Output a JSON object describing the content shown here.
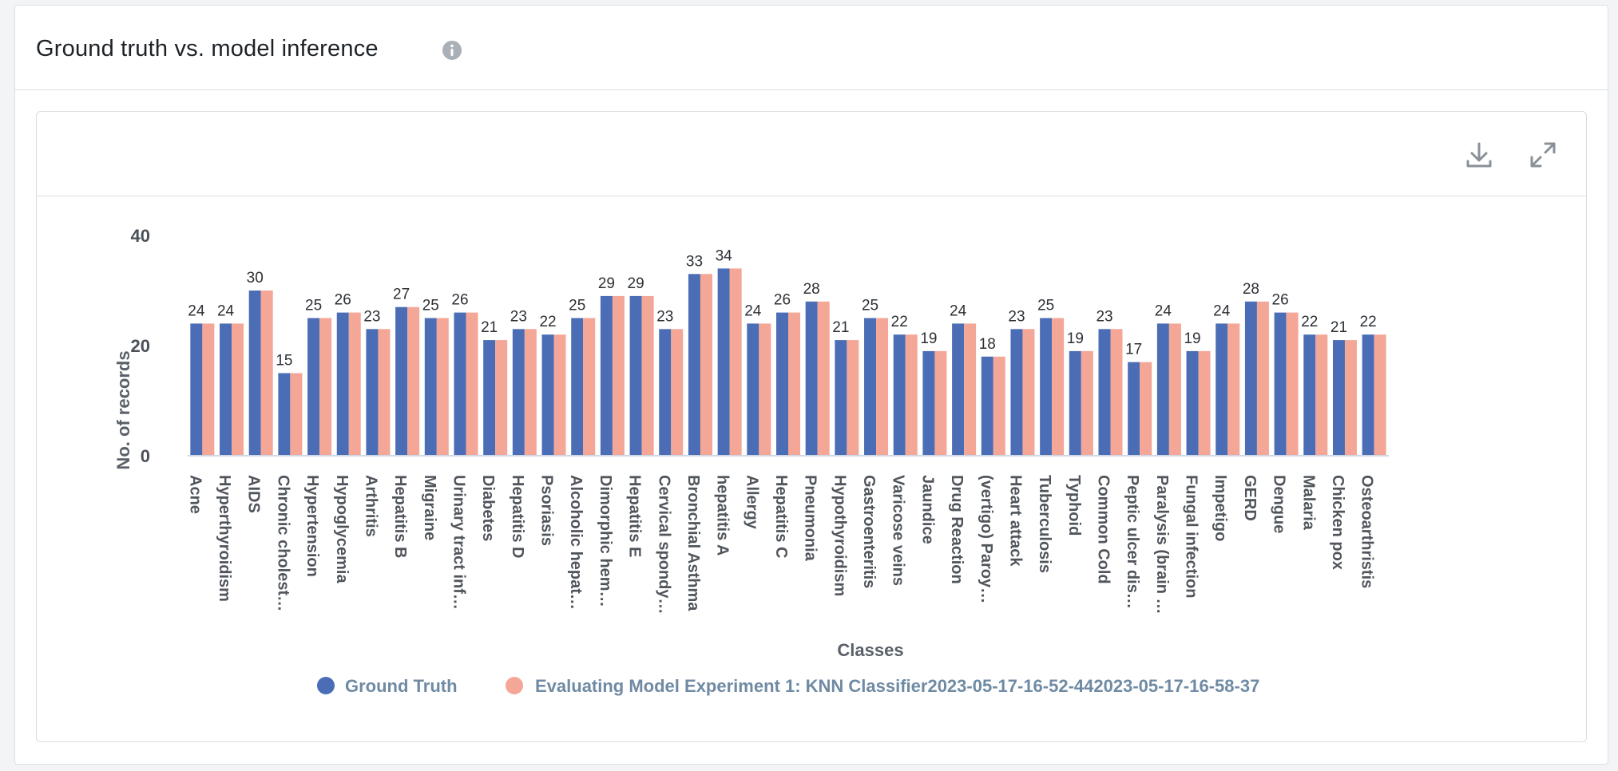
{
  "panel": {
    "title": "Ground truth vs. model inference"
  },
  "toolbar": {
    "download_icon": "download-icon",
    "expand_icon": "expand-icon",
    "info_icon": "info-icon"
  },
  "colors": {
    "ground_truth": "#4a6db5",
    "model": "#f4a697",
    "axis": "#cfd8e6"
  },
  "chart_data": {
    "type": "bar",
    "title": "",
    "xlabel": "Classes",
    "ylabel": "No. of records",
    "ylim": [
      0,
      40
    ],
    "yticks": [
      0,
      20,
      40
    ],
    "grid": false,
    "legend_position": "bottom",
    "categories": [
      "Acne",
      "Hyperthyroidism",
      "AIDS",
      "Chronic cholest…",
      "Hypertension",
      "Hypoglycemia",
      "Arthritis",
      "Hepatitis B",
      "Migraine",
      "Urinary tract inf…",
      "Diabetes",
      "Hepatitis D",
      "Psoriasis",
      "Alcoholic hepat…",
      "Dimorphic hem…",
      "Hepatitis E",
      "Cervical spondy…",
      "Bronchial Asthma",
      "hepatitis A",
      "Allergy",
      "Hepatitis C",
      "Pneumonia",
      "Hypothyroidism",
      "Gastroenteritis",
      "Varicose veins",
      "Jaundice",
      "Drug Reaction",
      "(vertigo) Paroy…",
      "Heart attack",
      "Tuberculosis",
      "Typhoid",
      "Common Cold",
      "Peptic ulcer dis…",
      "Paralysis (brain …",
      "Fungal infection",
      "Impetigo",
      "GERD",
      "Dengue",
      "Malaria",
      "Chicken pox",
      "Osteoarthristis"
    ],
    "series": [
      {
        "name": "Ground Truth",
        "values": [
          24,
          24,
          30,
          15,
          25,
          26,
          23,
          27,
          25,
          26,
          21,
          23,
          22,
          25,
          29,
          29,
          23,
          33,
          34,
          24,
          26,
          28,
          21,
          25,
          22,
          19,
          24,
          18,
          23,
          25,
          19,
          23,
          17,
          24,
          19,
          24,
          28,
          26,
          22,
          21,
          22
        ]
      },
      {
        "name": "Evaluating Model Experiment 1: KNN Classifier2023-05-17-16-52-442023-05-17-16-58-37",
        "values": [
          24,
          24,
          30,
          15,
          25,
          26,
          23,
          27,
          25,
          26,
          21,
          23,
          22,
          25,
          29,
          29,
          23,
          33,
          34,
          24,
          26,
          28,
          21,
          25,
          22,
          19,
          24,
          18,
          23,
          25,
          19,
          23,
          17,
          24,
          19,
          24,
          28,
          26,
          22,
          21,
          22
        ]
      }
    ]
  }
}
